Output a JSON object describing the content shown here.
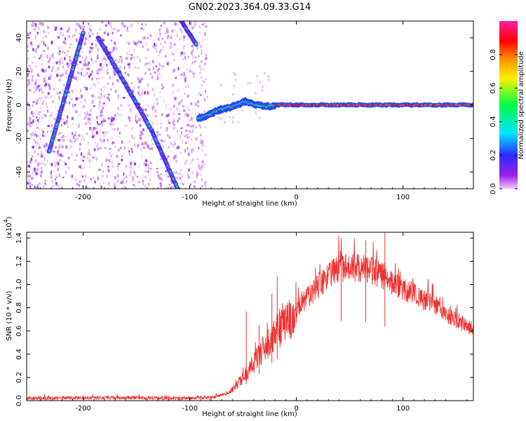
{
  "figure": {
    "title": "GN02.2023.364.09.33.G14"
  },
  "chart_data": [
    {
      "type": "heatmap",
      "xlabel": "Height of straight line (km)",
      "ylabel": "Frequency (Hz)",
      "xlim": [
        -253,
        166
      ],
      "ylim": [
        -50,
        50
      ],
      "xticks": [
        -200,
        -100,
        0,
        100
      ],
      "yticks": [
        -40,
        -20,
        0,
        20,
        40
      ],
      "colorbar": {
        "label": "Normalized spectral amplitude",
        "ticks": [
          "0.0",
          "0.2",
          "0.4",
          "0.6",
          "0.8"
        ],
        "range": [
          0,
          1
        ],
        "colormap": [
          "#f0c8ff",
          "#9b1fe8",
          "#2b2bff",
          "#00e5ff",
          "#00ff44",
          "#fff000",
          "#ff8a00",
          "#ff0000",
          "#ff1fa0"
        ]
      },
      "traces": [
        {
          "points": [
            [
              -232,
              -28
            ],
            [
              -200,
              43
            ]
          ],
          "level": 0.35
        },
        {
          "points": [
            [
              -186,
              40
            ],
            [
              -160,
              12
            ],
            [
              -136,
              -15
            ],
            [
              -110,
              -52
            ]
          ],
          "level": 0.35
        },
        {
          "points": [
            [
              -108,
              50
            ],
            [
              -94,
              36
            ]
          ],
          "level": 0.35
        },
        {
          "points": [
            [
              -92,
              -8
            ],
            [
              -82,
              -6
            ],
            [
              -72,
              -3
            ],
            [
              -60,
              -1
            ],
            [
              -48,
              2
            ],
            [
              -38,
              0
            ],
            [
              -28,
              -1
            ],
            [
              -18,
              0
            ],
            [
              0,
              0
            ],
            [
              50,
              0
            ],
            [
              100,
              0
            ],
            [
              166,
              0
            ]
          ],
          "level": 0.9
        }
      ],
      "noise_region_x": [
        -253,
        -85
      ]
    },
    {
      "type": "line",
      "xlabel": "Height of straight line (km)",
      "ylabel": "SNR (10 * v/v)",
      "y_multiplier": "(x10",
      "y_multiplier_exp": "4",
      "y_multiplier_close": ")",
      "xlim": [
        -253,
        166
      ],
      "ylim": [
        0,
        14500
      ],
      "xticks": [
        -200,
        -100,
        0,
        100
      ],
      "yticks": [
        "0.0",
        "0.2",
        "0.4",
        "0.6",
        "0.8",
        "1.0",
        "1.2",
        "1.4"
      ],
      "ytick_values": [
        0,
        2000,
        4000,
        6000,
        8000,
        10000,
        12000,
        14000
      ],
      "series": [
        {
          "color": "#f03030",
          "envelope": [
            [
              -253,
              200
            ],
            [
              -200,
              250
            ],
            [
              -150,
              250
            ],
            [
              -100,
              200
            ],
            [
              -80,
              250
            ],
            [
              -65,
              600
            ],
            [
              -55,
              1400
            ],
            [
              -50,
              2000
            ],
            [
              -40,
              3200
            ],
            [
              -30,
              4500
            ],
            [
              -20,
              5800
            ],
            [
              -10,
              6800
            ],
            [
              0,
              7800
            ],
            [
              10,
              8800
            ],
            [
              20,
              9800
            ],
            [
              30,
              10800
            ],
            [
              40,
              11400
            ],
            [
              50,
              11500
            ],
            [
              60,
              11400
            ],
            [
              70,
              11200
            ],
            [
              80,
              10800
            ],
            [
              90,
              10200
            ],
            [
              100,
              9600
            ],
            [
              110,
              9200
            ],
            [
              120,
              8700
            ],
            [
              130,
              8200
            ],
            [
              140,
              7500
            ],
            [
              150,
              7000
            ],
            [
              160,
              6500
            ],
            [
              166,
              6300
            ]
          ],
          "spikes": [
            [
              -47,
              7700
            ],
            [
              -35,
              6500
            ],
            [
              -23,
              9200
            ],
            [
              -18,
              10700
            ],
            [
              42,
              13500
            ],
            [
              65,
              13800
            ],
            [
              83,
              14500
            ]
          ]
        }
      ]
    }
  ]
}
